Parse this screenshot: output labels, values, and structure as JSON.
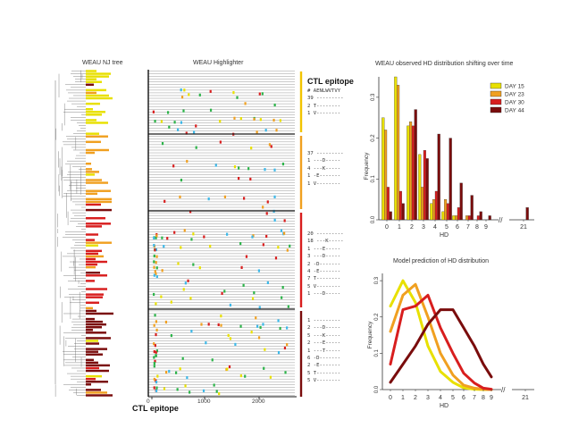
{
  "figure": {
    "tree_title": "WEAU NJ tree",
    "highlighter_title": "WEAU Highlighter",
    "x_axis_ticks": [
      "0",
      "1000",
      "2000"
    ],
    "x_axis_marker_label": "CTL epitope",
    "epitope_panel": {
      "title": "CTL epitope",
      "groups": [
        {
          "lines": [
            {
              "n": "#",
              "seq": "AENLWVTVY"
            },
            {
              "n": "39",
              "seq": "---------"
            },
            {
              "n": "2",
              "seq": "T--------"
            },
            {
              "n": "1",
              "seq": "V--------"
            }
          ]
        },
        {
          "lines": [
            {
              "n": "37",
              "seq": "---------"
            },
            {
              "n": "1",
              "seq": "---D-----"
            },
            {
              "n": "4",
              "seq": "---K-----"
            },
            {
              "n": "1",
              "seq": "-E-------"
            },
            {
              "n": "1",
              "seq": "V--------"
            }
          ]
        },
        {
          "lines": [
            {
              "n": "20",
              "seq": "---------"
            },
            {
              "n": "18",
              "seq": "---K-----"
            },
            {
              "n": "1",
              "seq": "---E-----"
            },
            {
              "n": "3",
              "seq": "---D-----"
            },
            {
              "n": "2",
              "seq": "-D-------"
            },
            {
              "n": "4",
              "seq": "-E-------"
            },
            {
              "n": "7",
              "seq": "T--------"
            },
            {
              "n": "5",
              "seq": "V--------"
            },
            {
              "n": "1",
              "seq": "---D-----"
            }
          ]
        },
        {
          "lines": [
            {
              "n": "1",
              "seq": "---------"
            },
            {
              "n": "2",
              "seq": "---D-----"
            },
            {
              "n": "5",
              "seq": "---K-----"
            },
            {
              "n": "2",
              "seq": "---E-----"
            },
            {
              "n": "1",
              "seq": "---T-----"
            },
            {
              "n": "6",
              "seq": "-D-------"
            },
            {
              "n": "2",
              "seq": "-E-------"
            },
            {
              "n": "5",
              "seq": "T--------"
            },
            {
              "n": "5",
              "seq": "V--------"
            }
          ]
        }
      ]
    },
    "colors": {
      "day15": "#e8e000",
      "day23": "#f0a020",
      "day30": "#d81e1e",
      "day44": "#7a0c0c",
      "bracket1": "#f2c400",
      "bracket2": "#f0a020",
      "bracket3": "#d81e1e",
      "bracket4": "#7a0c0c"
    }
  },
  "chart_data": [
    {
      "type": "bar",
      "title": "WEAU observed HD distribution shifting over time",
      "xlabel": "HD",
      "ylabel": "Frequency",
      "categories": [
        "0",
        "1",
        "2",
        "3",
        "4",
        "5",
        "6",
        "7",
        "8",
        "9",
        "21"
      ],
      "ylim": [
        0,
        0.35
      ],
      "yticks": [
        "0.0",
        "0.1",
        "0.2",
        "0.3"
      ],
      "series": [
        {
          "name": "DAY 15",
          "values": [
            0.25,
            0.35,
            0.23,
            0.16,
            0.04,
            0.02,
            0.01,
            0.0,
            0.0,
            0.0,
            0.0
          ]
        },
        {
          "name": "DAY 23",
          "values": [
            0.22,
            0.33,
            0.24,
            0.08,
            0.05,
            0.05,
            0.01,
            0.01,
            0.0,
            0.0,
            0.0
          ]
        },
        {
          "name": "DAY 30",
          "values": [
            0.08,
            0.07,
            0.23,
            0.17,
            0.07,
            0.04,
            0.03,
            0.01,
            0.01,
            0.0,
            0.0
          ]
        },
        {
          "name": "DAY 44",
          "values": [
            0.02,
            0.04,
            0.27,
            0.15,
            0.21,
            0.2,
            0.09,
            0.06,
            0.02,
            0.01,
            0.03
          ]
        }
      ]
    },
    {
      "type": "line",
      "title": "Model prediction of HD distribution",
      "xlabel": "HD",
      "ylabel": "Frequency",
      "x": [
        0,
        1,
        2,
        3,
        4,
        5,
        6,
        7,
        8,
        9
      ],
      "x_tick_labels": [
        "0",
        "1",
        "2",
        "3",
        "4",
        "5",
        "6",
        "7",
        "8",
        "9",
        "21"
      ],
      "ylim": [
        0,
        0.32
      ],
      "yticks": [
        "0.0",
        "0.1",
        "0.2",
        "0.3"
      ],
      "series": [
        {
          "name": "DAY 15",
          "values": [
            0.23,
            0.3,
            0.24,
            0.12,
            0.05,
            0.02,
            0.005,
            0.001,
            0.0,
            0.0
          ]
        },
        {
          "name": "DAY 23",
          "values": [
            0.16,
            0.26,
            0.29,
            0.2,
            0.1,
            0.04,
            0.012,
            0.004,
            0.001,
            0.0
          ]
        },
        {
          "name": "DAY 30",
          "values": [
            0.07,
            0.22,
            0.23,
            0.26,
            0.17,
            0.1,
            0.045,
            0.018,
            0.004,
            0.001
          ]
        },
        {
          "name": "DAY 44",
          "values": [
            0.02,
            0.07,
            0.12,
            0.18,
            0.22,
            0.22,
            0.17,
            0.12,
            0.07,
            0.035
          ]
        }
      ]
    }
  ]
}
